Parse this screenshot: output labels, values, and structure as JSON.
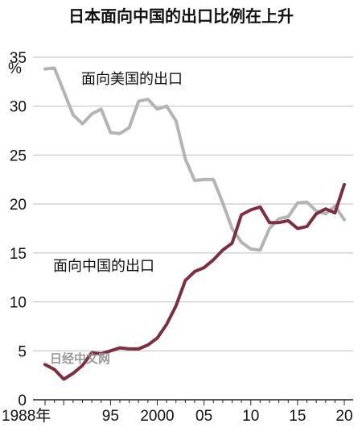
{
  "chart_data": {
    "type": "line",
    "title": "日本面向中国的出口比例在上升",
    "unit": "%",
    "ylim": [
      0,
      35
    ],
    "yticks": [
      0,
      5,
      10,
      15,
      20,
      25,
      30,
      35
    ],
    "xlim": [
      1988,
      2020
    ],
    "xtick_values": [
      1988,
      1995,
      2000,
      2005,
      2010,
      2015,
      2020
    ],
    "xtick_labels": [
      "1988年",
      "95",
      "2000",
      "05",
      "10",
      "15",
      "20"
    ],
    "grid": true,
    "series": [
      {
        "name": "面向美国的出口",
        "color": "#b4b4b4",
        "x": [
          1988,
          1989,
          1990,
          1991,
          1992,
          1993,
          1994,
          1995,
          1996,
          1997,
          1998,
          1999,
          2000,
          2001,
          2002,
          2003,
          2004,
          2005,
          2006,
          2007,
          2008,
          2009,
          2010,
          2011,
          2012,
          2013,
          2014,
          2015,
          2016,
          2017,
          2018,
          2019,
          2020
        ],
        "values": [
          33.8,
          33.9,
          31.5,
          29.1,
          28.2,
          29.2,
          29.7,
          27.3,
          27.2,
          27.8,
          30.5,
          30.7,
          29.7,
          30.0,
          28.5,
          24.6,
          22.4,
          22.5,
          22.5,
          20.1,
          17.5,
          16.1,
          15.4,
          15.3,
          17.5,
          18.5,
          18.7,
          20.1,
          20.2,
          19.3,
          19.0,
          19.8,
          18.4
        ]
      },
      {
        "name": "面向中国的出口",
        "color": "#7b2f3f",
        "x": [
          1988,
          1989,
          1990,
          1991,
          1992,
          1993,
          1994,
          1995,
          1996,
          1997,
          1998,
          1999,
          2000,
          2001,
          2002,
          2003,
          2004,
          2005,
          2006,
          2007,
          2008,
          2009,
          2010,
          2011,
          2012,
          2013,
          2014,
          2015,
          2016,
          2017,
          2018,
          2019,
          2020
        ],
        "values": [
          3.6,
          3.1,
          2.1,
          2.7,
          3.5,
          4.8,
          4.7,
          5.0,
          5.3,
          5.2,
          5.2,
          5.6,
          6.3,
          7.7,
          9.6,
          12.2,
          13.1,
          13.5,
          14.3,
          15.3,
          16.0,
          18.9,
          19.4,
          19.7,
          18.1,
          18.1,
          18.3,
          17.5,
          17.7,
          19.0,
          19.5,
          19.1,
          22.0
        ]
      }
    ],
    "annotations": [
      "面向美国的出口",
      "面向中国的出口"
    ],
    "watermark": "日经中文网"
  }
}
